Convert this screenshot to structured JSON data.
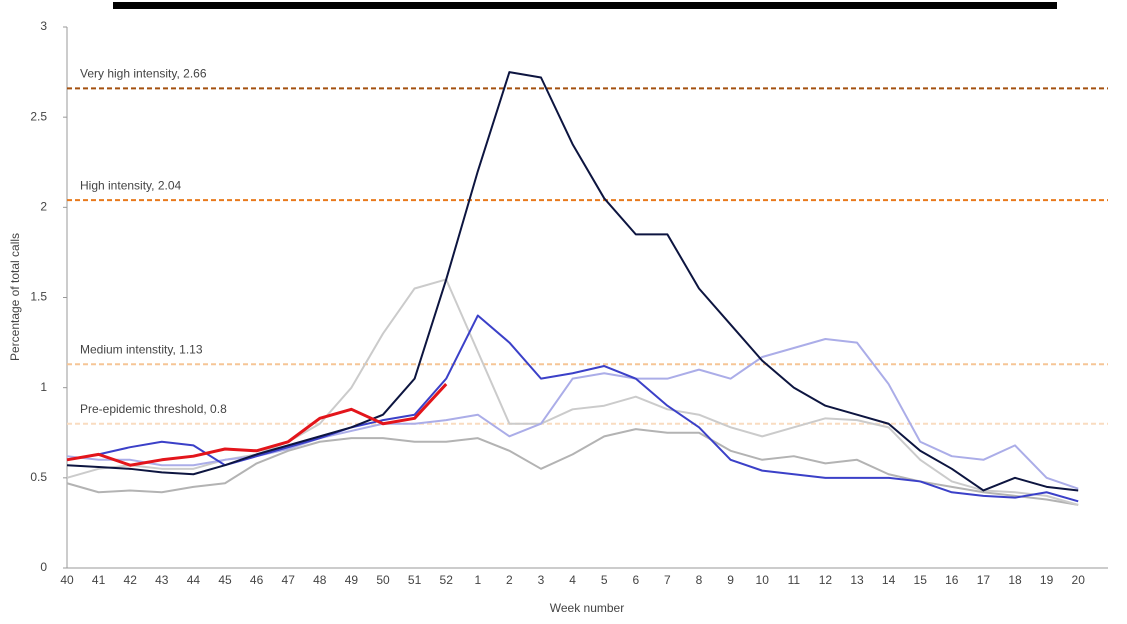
{
  "chart_data": {
    "type": "line",
    "y_label": "Percentage of total calls",
    "x_label": "Week number",
    "categories": [
      "40",
      "41",
      "42",
      "43",
      "44",
      "45",
      "46",
      "47",
      "48",
      "49",
      "50",
      "51",
      "52",
      "1",
      "2",
      "3",
      "4",
      "5",
      "6",
      "7",
      "8",
      "9",
      "10",
      "11",
      "12",
      "13",
      "14",
      "15",
      "16",
      "17",
      "18",
      "19",
      "20"
    ],
    "ylim": [
      0,
      3
    ],
    "yticks": [
      0,
      0.5,
      1,
      1.5,
      2,
      2.5,
      3
    ],
    "thresholds": [
      {
        "label": "Very high intensity, 2.66",
        "value": 2.66,
        "color": "#a4500f"
      },
      {
        "label": "High intensity, 2.04",
        "value": 2.04,
        "color": "#e8791c"
      },
      {
        "label": "Medium intenstity, 1.13",
        "value": 1.13,
        "color": "#f6c596"
      },
      {
        "label": "Pre-epidemic threshold, 0.8",
        "value": 0.8,
        "color": "#f9dcc0"
      }
    ],
    "series": [
      {
        "color": "#b3b3b3",
        "width": 2,
        "values": [
          0.47,
          0.42,
          0.43,
          0.42,
          0.45,
          0.47,
          0.58,
          0.65,
          0.7,
          0.72,
          0.72,
          0.7,
          0.7,
          0.72,
          0.65,
          0.55,
          0.63,
          0.73,
          0.77,
          0.75,
          0.75,
          0.65,
          0.6,
          0.62,
          0.58,
          0.6,
          0.52,
          0.48,
          0.45,
          0.42,
          0.4,
          0.38,
          0.35
        ]
      },
      {
        "color": "#cbcbcb",
        "width": 2,
        "values": [
          0.5,
          0.55,
          0.57,
          0.55,
          0.55,
          0.6,
          0.63,
          0.7,
          0.8,
          1.0,
          1.3,
          1.55,
          1.6,
          1.2,
          0.8,
          0.8,
          0.88,
          0.9,
          0.95,
          0.88,
          0.85,
          0.78,
          0.73,
          0.78,
          0.83,
          0.82,
          0.78,
          0.6,
          0.48,
          0.43,
          0.42,
          0.4,
          0.35
        ]
      },
      {
        "color": "#abade8",
        "width": 2,
        "values": [
          0.62,
          0.6,
          0.6,
          0.57,
          0.57,
          0.6,
          0.62,
          0.66,
          0.72,
          0.76,
          0.8,
          0.8,
          0.82,
          0.85,
          0.73,
          0.8,
          1.05,
          1.08,
          1.05,
          1.05,
          1.1,
          1.05,
          1.17,
          1.22,
          1.27,
          1.25,
          1.02,
          0.7,
          0.62,
          0.6,
          0.68,
          0.5,
          0.44
        ]
      },
      {
        "color": "#3b40c8",
        "width": 2,
        "values": [
          0.6,
          0.63,
          0.67,
          0.7,
          0.68,
          0.57,
          0.62,
          0.67,
          0.72,
          0.78,
          0.82,
          0.85,
          1.05,
          1.4,
          1.25,
          1.05,
          1.08,
          1.12,
          1.05,
          0.9,
          0.78,
          0.6,
          0.54,
          0.52,
          0.5,
          0.5,
          0.5,
          0.48,
          0.42,
          0.4,
          0.39,
          0.42,
          0.37
        ]
      },
      {
        "color": "#0d1540",
        "width": 2,
        "values": [
          0.57,
          0.56,
          0.55,
          0.53,
          0.52,
          0.57,
          0.63,
          0.68,
          0.73,
          0.78,
          0.85,
          1.05,
          1.6,
          2.2,
          2.75,
          2.72,
          2.35,
          2.05,
          1.85,
          1.85,
          1.55,
          1.35,
          1.15,
          1.0,
          0.9,
          0.85,
          0.8,
          0.65,
          0.55,
          0.43,
          0.5,
          0.45,
          0.43
        ]
      },
      {
        "color": "#e3151b",
        "width": 3,
        "values": [
          0.6,
          0.63,
          0.57,
          0.6,
          0.62,
          0.66,
          0.65,
          0.7,
          0.83,
          0.88,
          0.8,
          0.83,
          1.02,
          null,
          null,
          null,
          null,
          null,
          null,
          null,
          null,
          null,
          null,
          null,
          null,
          null,
          null,
          null,
          null,
          null,
          null,
          null,
          null
        ]
      }
    ]
  }
}
